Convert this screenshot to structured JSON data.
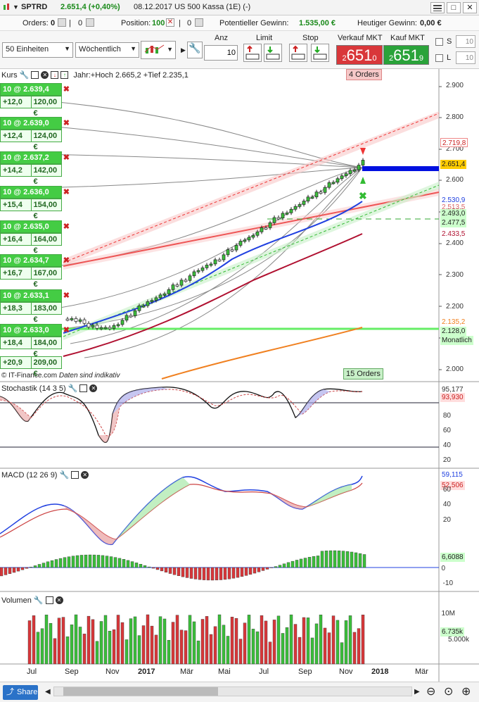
{
  "window": {
    "symbol": "SPTRD",
    "price_change": "2.651,4 (+0,40%)",
    "date": "08.12.2017",
    "instrument": "US 500 Kassa (1E) (-)"
  },
  "infobar": {
    "orders_label": "Orders:",
    "orders_value": "0",
    "orders_count": "0",
    "position_label": "Position:",
    "position_value": "100",
    "position_count": "0",
    "potential_label": "Potentieller Gewinn:",
    "potential_value": "1.535,00 €",
    "today_label": "Heutiger Gewinn:",
    "today_value": "0,00 €"
  },
  "toolbar": {
    "units": "50 Einheiten",
    "interval": "Wöchentlich",
    "anz_label": "Anz",
    "anz_value": "10",
    "limit_label": "Limit",
    "stop_label": "Stop",
    "sell_label": "Verkauf MKT",
    "buy_label": "Kauf MKT",
    "sell_small": "2",
    "sell_big": "651",
    "sell_sup": "0",
    "buy_small": "2",
    "buy_big": "651",
    "buy_sup": "9",
    "s_label": "S",
    "s_value": "10",
    "l_label": "L",
    "l_value": "10"
  },
  "colors": {
    "sell": "#d9373a",
    "buy": "#2aa33a",
    "candle_up": "#3bbf3b",
    "ma_blue": "#2040e0",
    "ma_red": "#b01030",
    "ma_orange": "#f08020"
  },
  "main": {
    "title": "Kurs",
    "hilo": "Jahr:+Hoch 2.665,2 +Tief 2.235,1",
    "top_orders": "4 Orders",
    "bottom_orders": "15 Orders",
    "footer": "© IT-Finance.com",
    "footer_note": "Daten sind indikativ",
    "y_ticks": [
      "2.900",
      "2.800",
      "2.700",
      "2.600",
      "2.500",
      "2.400",
      "2.300",
      "2.200",
      "2.100",
      "2.000"
    ],
    "tags": [
      "2.719,8",
      "2.651,4",
      "2.530,9",
      "2.513,5",
      "2.493,0",
      "2.477,5",
      "2.433,5",
      "2.135,2",
      "2.128,0",
      "Monatlich"
    ],
    "orders": [
      {
        "top": "10 @ 2.639,4",
        "pts": "+12,0",
        "eur": "120,00 €"
      },
      {
        "top": "10 @ 2.639,0",
        "pts": "+12,4",
        "eur": "124,00 €"
      },
      {
        "top": "10 @ 2.637,2",
        "pts": "+14,2",
        "eur": "142,00 €"
      },
      {
        "top": "10 @ 2.636,0",
        "pts": "+15,4",
        "eur": "154,00 €"
      },
      {
        "top": "10 @ 2.635,0",
        "pts": "+16,4",
        "eur": "164,00 €"
      },
      {
        "top": "10 @ 2.634,7",
        "pts": "+16,7",
        "eur": "167,00 €"
      },
      {
        "top": "10 @ 2.633,1",
        "pts": "+18,3",
        "eur": "183,00 €"
      },
      {
        "top": "10 @ 2.633,0",
        "pts": "+18,4",
        "eur": "184,00 €"
      }
    ],
    "last_order": {
      "pts": "+20,9",
      "eur": "209,00 €"
    }
  },
  "stoch": {
    "title": "Stochastik (14 3 5)",
    "v1": "95,177",
    "v2": "93,930",
    "ticks": [
      "80",
      "60",
      "40",
      "20"
    ]
  },
  "macd": {
    "title": "MACD (12 26 9)",
    "v1": "59,115",
    "v2": "52,506",
    "v3": "6,6088",
    "ticks": [
      "60",
      "40",
      "20",
      "0",
      "-10"
    ]
  },
  "volume": {
    "title": "Volumen",
    "v1": "6.735k",
    "ticks": [
      "10M",
      "5.000k"
    ]
  },
  "xaxis": [
    "Jul",
    "Sep",
    "Nov",
    "2017",
    "Mär",
    "Mai",
    "Jul",
    "Sep",
    "Nov",
    "2018",
    "Mär"
  ],
  "bottom": {
    "share": "Share"
  }
}
